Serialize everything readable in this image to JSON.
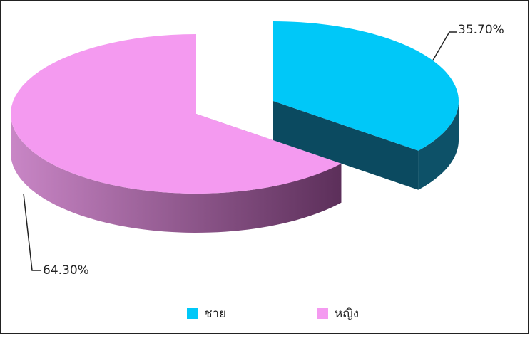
{
  "chart_data": {
    "type": "pie",
    "categories": [
      "ชาย",
      "หญิง"
    ],
    "values": [
      35.7,
      64.3
    ],
    "value_labels": [
      "35.70%",
      "64.30%"
    ],
    "colors": [
      "#00c8f8",
      "#f49af0"
    ],
    "legend": "bottom"
  }
}
